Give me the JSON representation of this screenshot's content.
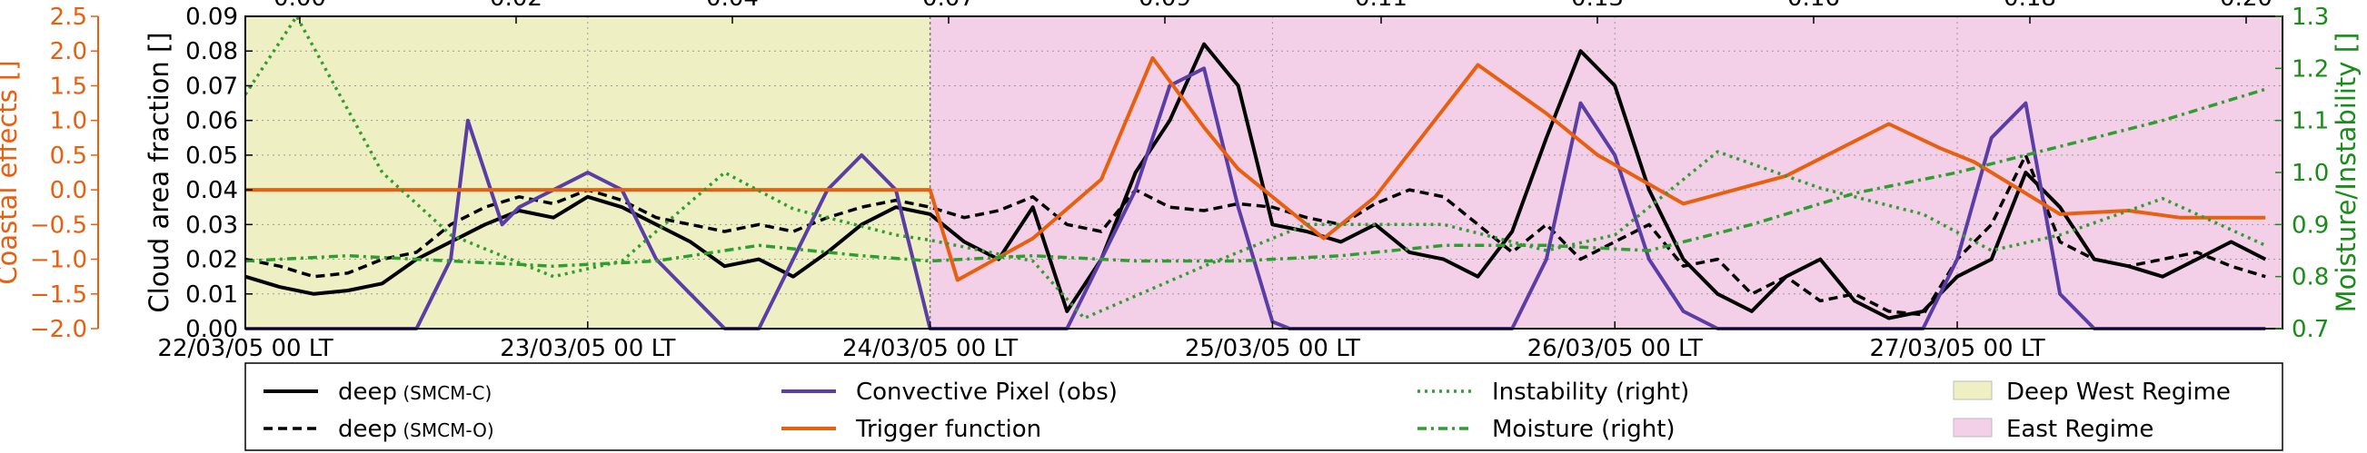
{
  "chart_data": {
    "type": "line",
    "axes": {
      "left_inner": {
        "label": "Cloud area fraction []",
        "ylim": [
          0,
          0.09
        ],
        "ticks": [
          "0.00",
          "0.01",
          "0.02",
          "0.03",
          "0.04",
          "0.05",
          "0.06",
          "0.07",
          "0.08",
          "0.09"
        ],
        "color": "#000000"
      },
      "left_outer": {
        "label": "Coastal effects []",
        "ylim": [
          -2.0,
          2.5
        ],
        "ticks": [
          "−2.0",
          "−1.5",
          "−1.0",
          "−0.5",
          "0.0",
          "0.5",
          "1.0",
          "1.5",
          "2.0",
          "2.5"
        ],
        "color": "#E8600F"
      },
      "right": {
        "label": "Moisture/Instability []",
        "ylim": [
          0.7,
          1.3
        ],
        "ticks": [
          "0.7",
          "0.8",
          "0.9",
          "1.0",
          "1.1",
          "1.2",
          "1.3"
        ],
        "color": "#1A8C1A"
      },
      "x": {
        "ticks": [
          "22/03/05 00 LT",
          "23/03/05 00 LT",
          "24/03/05 00 LT",
          "25/03/05 00 LT",
          "26/03/05 00 LT",
          "27/03/05 00 LT"
        ],
        "xlim_days": [
          0,
          5.95
        ]
      },
      "top": {
        "ticks": [
          "0.00",
          "0.02",
          "0.04",
          "0.07",
          "0.09",
          "0.11",
          "0.13",
          "0.16",
          "0.18",
          "0.20"
        ]
      }
    },
    "regimes": [
      {
        "name": "Deep West Regime",
        "start": 0,
        "end": 2.0,
        "color": "#EFEFC4"
      },
      {
        "name": "East Regime",
        "start": 2.0,
        "end": 5.95,
        "color": "#F3D0E7"
      }
    ],
    "series": [
      {
        "name": "deep",
        "suffix": "(SMCM-C)",
        "style": "solid",
        "color": "#000000",
        "x": [
          0,
          0.1,
          0.2,
          0.3,
          0.4,
          0.5,
          0.6,
          0.7,
          0.8,
          0.9,
          1.0,
          1.1,
          1.2,
          1.3,
          1.4,
          1.5,
          1.6,
          1.7,
          1.8,
          1.9,
          2.0,
          2.1,
          2.2,
          2.3,
          2.4,
          2.5,
          2.6,
          2.7,
          2.8,
          2.9,
          3.0,
          3.1,
          3.2,
          3.3,
          3.4,
          3.5,
          3.6,
          3.7,
          3.8,
          3.9,
          4.0,
          4.1,
          4.2,
          4.3,
          4.4,
          4.5,
          4.6,
          4.7,
          4.8,
          4.9,
          5.0,
          5.1,
          5.2,
          5.3,
          5.4,
          5.5,
          5.6,
          5.7,
          5.8,
          5.9
        ],
        "y": [
          0.015,
          0.012,
          0.01,
          0.011,
          0.013,
          0.02,
          0.025,
          0.03,
          0.034,
          0.032,
          0.038,
          0.035,
          0.03,
          0.025,
          0.018,
          0.02,
          0.015,
          0.022,
          0.03,
          0.035,
          0.033,
          0.025,
          0.02,
          0.035,
          0.005,
          0.02,
          0.045,
          0.06,
          0.082,
          0.07,
          0.03,
          0.028,
          0.025,
          0.03,
          0.022,
          0.02,
          0.015,
          0.028,
          0.055,
          0.08,
          0.07,
          0.04,
          0.02,
          0.01,
          0.005,
          0.015,
          0.02,
          0.008,
          0.003,
          0.005,
          0.015,
          0.02,
          0.045,
          0.035,
          0.02,
          0.018,
          0.015,
          0.02,
          0.025,
          0.02
        ]
      },
      {
        "name": "deep",
        "suffix": "(SMCM-O)",
        "style": "dashed",
        "color": "#000000",
        "x": [
          0,
          0.1,
          0.2,
          0.3,
          0.4,
          0.5,
          0.6,
          0.7,
          0.8,
          0.9,
          1.0,
          1.1,
          1.2,
          1.3,
          1.4,
          1.5,
          1.6,
          1.7,
          1.8,
          1.9,
          2.0,
          2.1,
          2.2,
          2.3,
          2.4,
          2.5,
          2.6,
          2.7,
          2.8,
          2.9,
          3.0,
          3.1,
          3.2,
          3.3,
          3.4,
          3.5,
          3.6,
          3.7,
          3.8,
          3.9,
          4.0,
          4.1,
          4.2,
          4.3,
          4.4,
          4.5,
          4.6,
          4.7,
          4.8,
          4.9,
          5.0,
          5.1,
          5.2,
          5.3,
          5.4,
          5.5,
          5.6,
          5.7,
          5.8,
          5.9
        ],
        "y": [
          0.02,
          0.018,
          0.015,
          0.016,
          0.02,
          0.022,
          0.03,
          0.035,
          0.038,
          0.036,
          0.04,
          0.037,
          0.032,
          0.03,
          0.028,
          0.03,
          0.028,
          0.032,
          0.035,
          0.037,
          0.035,
          0.032,
          0.034,
          0.038,
          0.03,
          0.028,
          0.04,
          0.035,
          0.034,
          0.036,
          0.035,
          0.032,
          0.03,
          0.036,
          0.04,
          0.038,
          0.03,
          0.022,
          0.03,
          0.02,
          0.025,
          0.03,
          0.018,
          0.02,
          0.01,
          0.015,
          0.008,
          0.01,
          0.005,
          0.004,
          0.02,
          0.03,
          0.05,
          0.025,
          0.02,
          0.018,
          0.02,
          0.022,
          0.018,
          0.015
        ]
      },
      {
        "name": "Convective Pixel (obs)",
        "style": "solid",
        "color": "#5A3EA6",
        "x": [
          0,
          0.3,
          0.5,
          0.6,
          0.65,
          0.7,
          0.75,
          0.8,
          0.9,
          1.0,
          1.1,
          1.2,
          1.3,
          1.4,
          1.5,
          1.6,
          1.7,
          1.8,
          1.9,
          1.95,
          2.0,
          2.4,
          2.5,
          2.6,
          2.7,
          2.8,
          2.9,
          3.0,
          3.05,
          3.3,
          3.4,
          3.5,
          3.6,
          3.7,
          3.8,
          3.9,
          4.0,
          4.1,
          4.2,
          4.3,
          4.4,
          4.5,
          4.6,
          4.7,
          4.8,
          4.9,
          5.0,
          5.1,
          5.2,
          5.3,
          5.4,
          5.5,
          5.6,
          5.7,
          5.8,
          5.9
        ],
        "y": [
          0,
          0,
          0,
          0.02,
          0.06,
          0.045,
          0.03,
          0.035,
          0.04,
          0.045,
          0.04,
          0.02,
          0.01,
          0.0,
          0.0,
          0.02,
          0.04,
          0.05,
          0.04,
          0.02,
          0.0,
          0.0,
          0.02,
          0.04,
          0.07,
          0.075,
          0.035,
          0.002,
          0.0,
          0.0,
          0.0,
          0.0,
          0.0,
          0.0,
          0.02,
          0.065,
          0.05,
          0.02,
          0.005,
          0.0,
          0.0,
          0.0,
          0.0,
          0.0,
          0.0,
          0.0,
          0.02,
          0.055,
          0.065,
          0.01,
          0.0,
          0.0,
          0.0,
          0.0,
          0.0,
          0.0
        ]
      },
      {
        "name": "Trigger function",
        "style": "solid",
        "color": "#E8600F",
        "axis": "left_outer",
        "x": [
          0,
          2.0,
          2.08,
          2.3,
          2.5,
          2.65,
          2.8,
          2.9,
          3.15,
          3.3,
          3.6,
          3.8,
          3.95,
          4.2,
          4.5,
          4.8,
          4.95,
          5.05,
          5.3,
          5.5,
          5.65,
          5.9
        ],
        "y": [
          0.0,
          0.0,
          -1.3,
          -0.7,
          0.15,
          1.9,
          0.9,
          0.3,
          -0.7,
          -0.1,
          1.8,
          1.1,
          0.5,
          -0.2,
          0.2,
          0.95,
          0.6,
          0.4,
          -0.35,
          -0.3,
          -0.4,
          -0.4
        ]
      },
      {
        "name": "Instability (right)",
        "style": "dotted",
        "color": "#2E9E2E",
        "axis": "right",
        "x": [
          0,
          0.15,
          0.4,
          0.6,
          0.9,
          1.1,
          1.4,
          1.6,
          1.9,
          2.0,
          2.3,
          2.45,
          2.8,
          3.1,
          3.5,
          3.8,
          4.0,
          4.3,
          4.6,
          4.9,
          5.1,
          5.3,
          5.6,
          5.9
        ],
        "y": [
          1.15,
          1.3,
          1.0,
          0.88,
          0.8,
          0.83,
          1.0,
          0.93,
          0.88,
          0.87,
          0.83,
          0.72,
          0.82,
          0.9,
          0.9,
          0.85,
          0.88,
          1.04,
          0.97,
          0.92,
          0.85,
          0.88,
          0.95,
          0.86
        ]
      },
      {
        "name": "Moisture (right)",
        "style": "dashdot",
        "color": "#2E9E2E",
        "axis": "right",
        "x": [
          0,
          0.3,
          0.6,
          0.9,
          1.2,
          1.5,
          1.8,
          2.0,
          2.3,
          2.6,
          2.9,
          3.2,
          3.5,
          3.8,
          4.1,
          4.4,
          4.7,
          5.0,
          5.3,
          5.6,
          5.9
        ],
        "y": [
          0.83,
          0.84,
          0.83,
          0.82,
          0.83,
          0.86,
          0.84,
          0.83,
          0.84,
          0.83,
          0.83,
          0.84,
          0.86,
          0.86,
          0.85,
          0.9,
          0.96,
          1.0,
          1.05,
          1.1,
          1.16
        ]
      }
    ],
    "legend": {
      "placement": "bottom",
      "entries": [
        {
          "label": "deep",
          "suffix": "(SMCM-C)",
          "kind": "line",
          "color": "#000000",
          "style": "solid"
        },
        {
          "label": "deep",
          "suffix": "(SMCM-O)",
          "kind": "line",
          "color": "#000000",
          "style": "dashed"
        },
        {
          "label": "Convective Pixel (obs)",
          "kind": "line",
          "color": "#5A3EA6",
          "style": "solid"
        },
        {
          "label": "Trigger function",
          "kind": "line",
          "color": "#E8600F",
          "style": "solid"
        },
        {
          "label": "Instability (right)",
          "kind": "line",
          "color": "#2E9E2E",
          "style": "dotted"
        },
        {
          "label": "Moisture (right)",
          "kind": "line",
          "color": "#2E9E2E",
          "style": "dashdot"
        },
        {
          "label": "Deep West Regime",
          "kind": "patch",
          "color": "#EFEFC4"
        },
        {
          "label": "East Regime",
          "kind": "patch",
          "color": "#F3D0E7"
        }
      ]
    },
    "grid": true
  }
}
